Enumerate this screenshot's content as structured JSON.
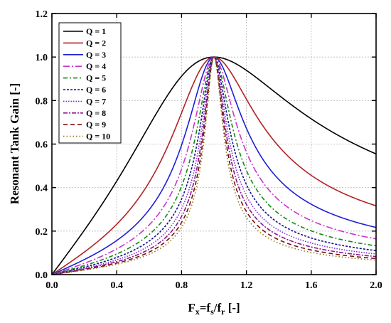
{
  "chart_data": {
    "type": "line",
    "xlabel": {
      "base": "F",
      "base_sub": "x",
      "mid": "=f",
      "mid_sub": "s",
      "slash": "/f",
      "end_sub": "r",
      "unit": " [-]"
    },
    "ylabel": "Resonant Tank Gain [-]",
    "xlim": [
      0.0,
      2.0
    ],
    "ylim": [
      0.0,
      1.2
    ],
    "xticks": [
      "0.0",
      "0.4",
      "0.8",
      "1.2",
      "1.6",
      "2.0"
    ],
    "yticks": [
      "0.0",
      "0.2",
      "0.4",
      "0.6",
      "0.8",
      "1.0",
      "1.2"
    ],
    "grid": true,
    "legend_position": "top-left",
    "series": [
      {
        "name": "Q = 1",
        "Q": 1,
        "color": "#000000",
        "dash": ""
      },
      {
        "name": "Q = 2",
        "Q": 2,
        "color": "#b22222",
        "dash": ""
      },
      {
        "name": "Q = 3",
        "Q": 3,
        "color": "#1f1fd6",
        "dash": ""
      },
      {
        "name": "Q = 4",
        "Q": 4,
        "color": "#cc33cc",
        "dash": "9 3 2 3"
      },
      {
        "name": "Q = 5",
        "Q": 5,
        "color": "#138a13",
        "dash": "6 3 2 3"
      },
      {
        "name": "Q = 6",
        "Q": 6,
        "color": "#101090",
        "dash": "3 2"
      },
      {
        "name": "Q = 7",
        "Q": 7,
        "color": "#7b2be0",
        "dash": "1.5 2"
      },
      {
        "name": "Q = 8",
        "Q": 8,
        "color": "#8a158a",
        "dash": "6 2 2 2"
      },
      {
        "name": "Q = 9",
        "Q": 9,
        "color": "#7a1010",
        "dash": "6 4"
      },
      {
        "name": "Q = 10",
        "Q": 10,
        "color": "#8a7a10",
        "dash": "1.5 3"
      }
    ]
  }
}
